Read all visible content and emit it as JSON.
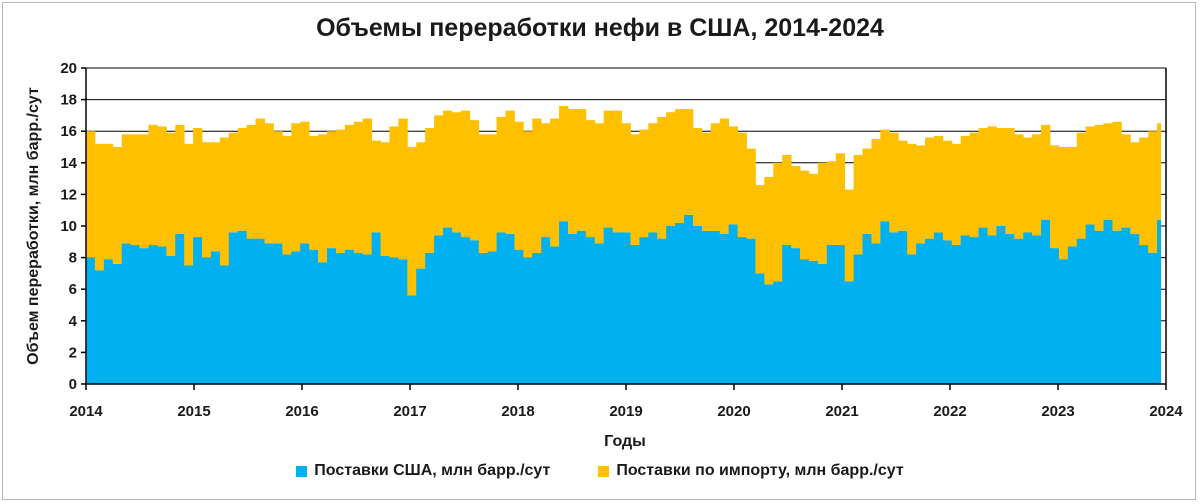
{
  "chart_data": {
    "type": "bar",
    "stacked": true,
    "title": "Объемы переработки нефи в США, 2014-2024",
    "xlabel": "Годы",
    "ylabel": "Объем переработки, млн барр./сут",
    "ylim": [
      0,
      20
    ],
    "yticks": [
      "0",
      "2",
      "4",
      "6",
      "8",
      "10",
      "12",
      "14",
      "16",
      "18",
      "20"
    ],
    "xticks": [
      "2014",
      "2015",
      "2016",
      "2017",
      "2018",
      "2019",
      "2020",
      "2021",
      "2022",
      "2023",
      "2024"
    ],
    "grid": "horizontal",
    "legend_position": "bottom",
    "period_start": "2014-01",
    "period_end": "2024-01",
    "frequency": "monthly",
    "series": [
      {
        "name": "Поставки США, млн барр./сут",
        "color": "#00b0f0",
        "values": [
          8.0,
          7.2,
          7.9,
          7.6,
          8.9,
          8.8,
          8.6,
          8.8,
          8.7,
          8.1,
          9.5,
          7.5,
          9.3,
          8.0,
          8.4,
          7.5,
          9.6,
          9.7,
          9.2,
          9.2,
          8.9,
          8.9,
          8.2,
          8.4,
          8.9,
          8.5,
          7.7,
          8.6,
          8.3,
          8.5,
          8.3,
          8.2,
          9.6,
          8.1,
          8.0,
          7.9,
          5.6,
          7.3,
          8.3,
          9.4,
          9.9,
          9.6,
          9.3,
          9.1,
          8.3,
          8.4,
          9.6,
          9.5,
          8.5,
          8.0,
          8.3,
          9.3,
          8.7,
          10.3,
          9.5,
          9.7,
          9.3,
          8.9,
          9.9,
          9.6,
          9.6,
          8.8,
          9.3,
          9.6,
          9.2,
          10.0,
          10.2,
          10.7,
          10.0,
          9.7,
          9.7,
          9.5,
          10.1,
          9.3,
          9.2,
          7.0,
          6.3,
          6.5,
          8.8,
          8.6,
          7.9,
          7.8,
          7.6,
          8.8,
          8.8,
          6.5,
          8.2,
          9.5,
          8.9,
          10.3,
          9.6,
          9.7,
          8.2,
          8.9,
          9.2,
          9.6,
          9.1,
          8.8,
          9.4,
          9.3,
          9.9,
          9.4,
          10.0,
          9.5,
          9.2,
          9.6,
          9.4,
          10.4,
          8.6,
          7.9,
          8.7,
          9.2,
          10.1,
          9.7,
          10.4,
          9.7,
          9.9,
          9.5,
          8.8,
          8.3,
          10.4
        ],
        "totals": [
          16.0,
          15.2,
          15.2,
          15.0,
          15.8,
          15.8,
          15.8,
          16.4,
          16.3,
          15.9,
          16.4,
          15.2,
          16.2,
          15.3,
          15.3,
          15.6,
          15.9,
          16.2,
          16.4,
          16.8,
          16.5,
          16.0,
          15.7,
          16.5,
          16.6,
          15.7,
          15.8,
          16.0,
          16.1,
          16.4,
          16.6,
          16.8,
          15.4,
          15.3,
          16.3,
          16.8,
          15.0,
          15.3,
          16.2,
          17.0,
          17.3,
          17.2,
          17.3,
          16.7,
          15.8,
          15.8,
          16.9,
          17.3,
          16.6,
          16.0,
          16.8,
          16.5,
          16.8,
          17.6,
          17.4,
          17.4,
          16.7,
          16.5,
          17.3,
          17.3,
          16.5,
          15.8,
          16.1,
          16.5,
          16.9,
          17.2,
          17.4,
          17.4,
          16.2,
          15.9,
          16.5,
          16.8,
          16.3,
          15.9,
          14.9,
          12.6,
          13.1,
          14.0,
          14.5,
          13.8,
          13.5,
          13.3,
          14.0,
          14.1,
          14.6,
          12.3,
          14.5,
          14.9,
          15.5,
          16.1,
          15.9,
          15.4,
          15.2,
          15.1,
          15.6,
          15.7,
          15.4,
          15.2,
          15.7,
          15.9,
          16.2,
          16.3,
          16.2,
          16.2,
          15.8,
          15.6,
          15.8,
          16.4,
          15.1,
          15.0,
          15.0,
          15.9,
          16.3,
          16.4,
          16.5,
          16.6,
          15.8,
          15.3,
          15.6,
          16.0,
          16.5
        ]
      },
      {
        "name": "Поставки по импорту, млн барр./сут",
        "color": "#ffc000",
        "values": "total minus US supplies (stacked on top)"
      }
    ]
  }
}
